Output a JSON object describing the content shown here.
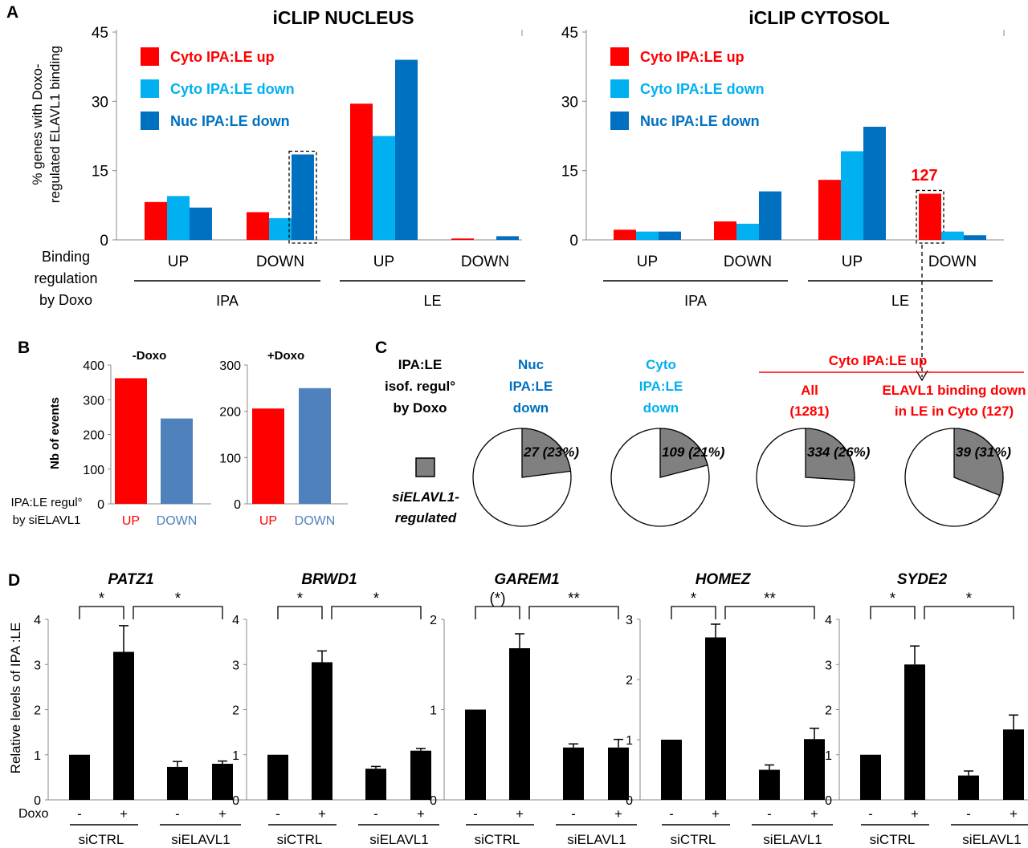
{
  "panel_labels": {
    "A": "A",
    "B": "B",
    "C": "C",
    "D": "D"
  },
  "colors": {
    "red": "#ff0000",
    "light_blue": "#00b0f0",
    "dark_blue": "#0070c0",
    "bar_b_blue": "#4f81bd",
    "black": "#000000",
    "pie_gray": "#808080"
  },
  "panelA": {
    "ylabel_line1": "% genes with Doxo-",
    "ylabel_line2": "regulated ELAVL1 binding",
    "row_label_lines": [
      "Binding",
      "regulation",
      "by Doxo"
    ],
    "group_labels": [
      "IPA",
      "LE"
    ],
    "annotation_127": "127"
  },
  "panelB": {
    "ylabel": "Nb of events",
    "xlabel_lines": [
      "IPA:LE regul°",
      "by siELAVL1"
    ]
  },
  "panelC": {
    "row_label_lines": [
      "IPA:LE",
      "isof. regul°",
      "by Doxo"
    ],
    "legend_lines": [
      "siELAVL1-",
      "regulated"
    ],
    "cyto_header": "Cyto IPA:LE up",
    "pies": [
      {
        "title_lines": [
          "Nuc",
          "IPA:LE",
          "down"
        ],
        "color": "#0070c0",
        "label": "27 (23%)",
        "fraction": 0.23
      },
      {
        "title_lines": [
          "Cyto",
          "IPA:LE",
          "down"
        ],
        "color": "#00b0f0",
        "label": "109 (21%)",
        "fraction": 0.21
      },
      {
        "title_lines": [
          "All",
          "(1281)"
        ],
        "color": "#ff0000",
        "label": "334 (26%)",
        "fraction": 0.26
      },
      {
        "title_lines": [
          "ELAVL1 binding down",
          "in LE in Cyto (127)"
        ],
        "color": "#ff0000",
        "label": "39 (31%)",
        "fraction": 0.31
      }
    ]
  },
  "panelD": {
    "ylabel": "Relative levels of IPA :LE",
    "doxo_label": "Doxo",
    "doxo_signs": [
      "-",
      "+",
      "-",
      "+"
    ],
    "group_labels": [
      "siCTRL",
      "siELAVL1"
    ]
  },
  "chart_data": [
    {
      "type": "bar",
      "title": "iCLIP NUCLEUS",
      "ylim": [
        0,
        45
      ],
      "yticks": [
        0,
        15,
        30,
        45
      ],
      "categories": [
        "IPA UP",
        "IPA DOWN",
        "LE UP",
        "LE DOWN"
      ],
      "category_labels": [
        "UP",
        "DOWN",
        "UP",
        "DOWN"
      ],
      "series": [
        {
          "name": "Cyto IPA:LE up",
          "color": "#ff0000",
          "values": [
            8.2,
            6.0,
            29.5,
            0.3
          ]
        },
        {
          "name": "Cyto IPA:LE down",
          "color": "#00b0f0",
          "values": [
            9.5,
            4.7,
            22.5,
            0
          ]
        },
        {
          "name": "Nuc IPA:LE down",
          "color": "#0070c0",
          "values": [
            7.0,
            18.5,
            39.0,
            0.8
          ]
        }
      ],
      "highlight": {
        "category": 1,
        "series": 2
      }
    },
    {
      "type": "bar",
      "title": "iCLIP CYTOSOL",
      "ylim": [
        0,
        45
      ],
      "yticks": [
        0,
        15,
        30,
        45
      ],
      "categories": [
        "IPA UP",
        "IPA DOWN",
        "LE UP",
        "LE DOWN"
      ],
      "category_labels": [
        "UP",
        "DOWN",
        "UP",
        "DOWN"
      ],
      "series": [
        {
          "name": "Cyto IPA:LE up",
          "color": "#ff0000",
          "values": [
            2.2,
            4.0,
            13.0,
            10.0
          ]
        },
        {
          "name": "Cyto IPA:LE down",
          "color": "#00b0f0",
          "values": [
            1.8,
            3.5,
            19.2,
            1.8
          ]
        },
        {
          "name": "Nuc IPA:LE down",
          "color": "#0070c0",
          "values": [
            1.8,
            10.5,
            24.5,
            1.0
          ]
        }
      ],
      "highlight": {
        "category": 3,
        "series": 0
      }
    },
    {
      "type": "bar",
      "title": "-Doxo",
      "ylim": [
        0,
        400
      ],
      "yticks": [
        0,
        100,
        200,
        300,
        400
      ],
      "categories": [
        "UP",
        "DOWN"
      ],
      "values": [
        362,
        246
      ],
      "colors": [
        "#ff0000",
        "#4f81bd"
      ]
    },
    {
      "type": "bar",
      "title": "+Doxo",
      "ylim": [
        0,
        300
      ],
      "yticks": [
        0,
        100,
        200,
        300
      ],
      "categories": [
        "UP",
        "DOWN"
      ],
      "values": [
        206,
        250
      ],
      "colors": [
        "#ff0000",
        "#4f81bd"
      ]
    },
    {
      "type": "bar",
      "title": "PATZ1",
      "ylim": [
        0,
        4
      ],
      "yticks": [
        0,
        1,
        2,
        3,
        4
      ],
      "values": [
        1.0,
        3.28,
        0.73,
        0.8
      ],
      "errors": [
        0,
        0.58,
        0.12,
        0.06
      ],
      "sig": [
        "*",
        "*"
      ]
    },
    {
      "type": "bar",
      "title": "BRWD1",
      "ylim": [
        0,
        4
      ],
      "yticks": [
        0,
        1,
        2,
        3,
        4
      ],
      "values": [
        1.0,
        3.05,
        0.69,
        1.09
      ],
      "errors": [
        0,
        0.25,
        0.05,
        0.05
      ],
      "sig": [
        "*",
        "*"
      ]
    },
    {
      "type": "bar",
      "title": "GAREM1",
      "ylim": [
        0,
        2
      ],
      "yticks": [
        0,
        1,
        2
      ],
      "values": [
        1.0,
        1.68,
        0.58,
        0.58
      ],
      "errors": [
        0,
        0.16,
        0.04,
        0.09
      ],
      "sig": [
        "(*)",
        "**"
      ]
    },
    {
      "type": "bar",
      "title": "HOMEZ",
      "ylim": [
        0,
        3
      ],
      "yticks": [
        0,
        1,
        2,
        3
      ],
      "values": [
        1.0,
        2.7,
        0.5,
        1.01
      ],
      "errors": [
        0,
        0.22,
        0.08,
        0.18
      ],
      "sig": [
        "*",
        "**"
      ]
    },
    {
      "type": "bar",
      "title": "SYDE2",
      "ylim": [
        0,
        4
      ],
      "yticks": [
        0,
        1,
        2,
        3,
        4
      ],
      "values": [
        1.0,
        3.0,
        0.54,
        1.56
      ],
      "errors": [
        0,
        0.41,
        0.1,
        0.32
      ],
      "sig": [
        "*",
        "*"
      ]
    }
  ]
}
